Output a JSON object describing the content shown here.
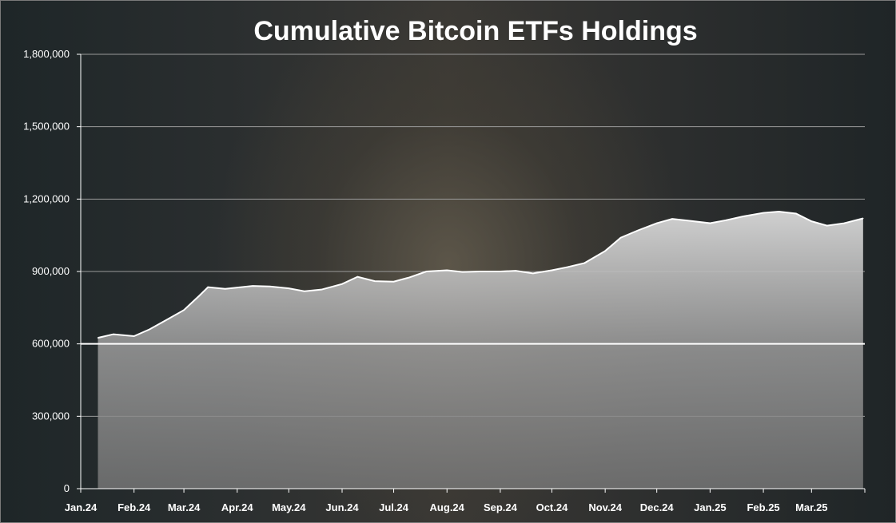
{
  "chart_data": {
    "type": "area",
    "title": "Cumulative Bitcoin ETFs Holdings",
    "xlabel": "",
    "ylabel": "",
    "ylim": [
      0,
      1800000
    ],
    "yticks": [
      0,
      300000,
      600000,
      900000,
      1200000,
      1500000,
      1800000
    ],
    "ytick_labels": [
      "0",
      "300,000",
      "600,000",
      "900,000",
      "1,200,000",
      "1,500,000",
      "1,800,000"
    ],
    "x_tick_labels": [
      "Jan.24",
      "Feb.24",
      "Mar.24",
      "Apr.24",
      "May.24",
      "Jun.24",
      "Jul.24",
      "Aug.24",
      "Sep.24",
      "Oct.24",
      "Nov.24",
      "Dec.24",
      "Jan.25",
      "Feb.25",
      "Mar.25"
    ],
    "grid": true,
    "legend": "none",
    "colors": {
      "area_upper": "#d8d8d8",
      "area_lower": "#8a8a8a",
      "line": "#ffffff",
      "grid": "#9a9a9a"
    },
    "series": [
      {
        "x": [
          "2024-01-11",
          "2024-01-20",
          "2024-02-01",
          "2024-02-10",
          "2024-02-20",
          "2024-03-01",
          "2024-03-10",
          "2024-03-15",
          "2024-03-25",
          "2024-04-10",
          "2024-04-20",
          "2024-05-01",
          "2024-05-10",
          "2024-05-20",
          "2024-06-01",
          "2024-06-10",
          "2024-06-20",
          "2024-07-01",
          "2024-07-10",
          "2024-07-20",
          "2024-08-01",
          "2024-08-10",
          "2024-08-20",
          "2024-09-01",
          "2024-09-10",
          "2024-09-20",
          "2024-10-01",
          "2024-10-10",
          "2024-10-20",
          "2024-11-01",
          "2024-11-10",
          "2024-11-20",
          "2024-12-01",
          "2024-12-10",
          "2024-12-20",
          "2025-01-01",
          "2025-01-10",
          "2025-01-20",
          "2025-02-01",
          "2025-02-10",
          "2025-02-20",
          "2025-03-01",
          "2025-03-10",
          "2025-03-20",
          "2025-03-31"
        ],
        "values": [
          625000,
          640000,
          632000,
          660000,
          700000,
          740000,
          800000,
          835000,
          828000,
          840000,
          838000,
          830000,
          818000,
          825000,
          848000,
          878000,
          860000,
          858000,
          875000,
          900000,
          905000,
          898000,
          900000,
          900000,
          903000,
          892000,
          905000,
          918000,
          935000,
          985000,
          1040000,
          1070000,
          1100000,
          1118000,
          1110000,
          1100000,
          1112000,
          1128000,
          1143000,
          1148000,
          1140000,
          1108000,
          1090000,
          1100000,
          1120000
        ]
      }
    ]
  }
}
